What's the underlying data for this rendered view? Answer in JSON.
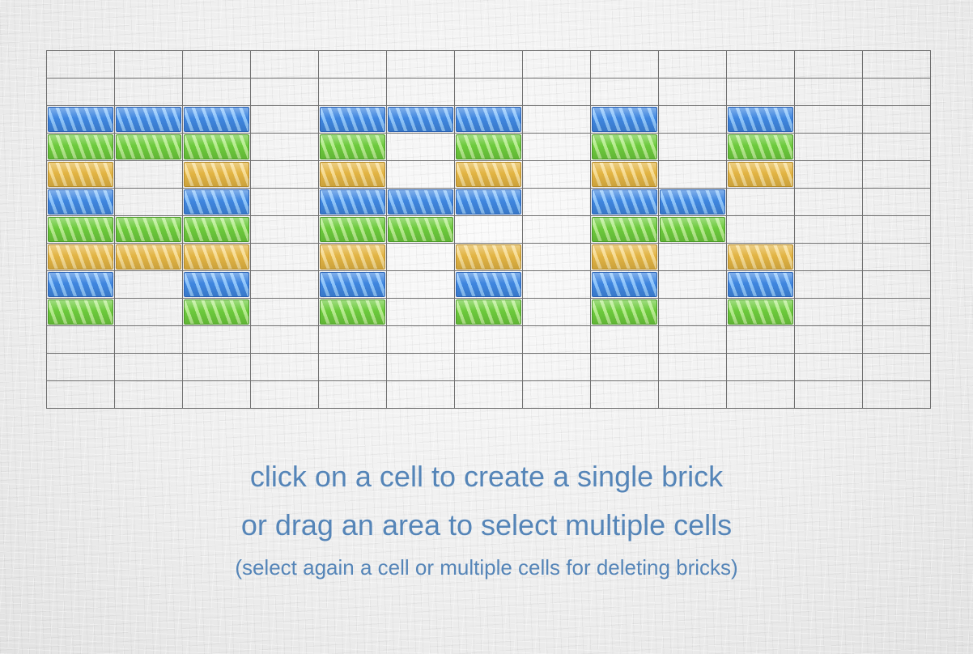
{
  "board": {
    "rows": 13,
    "cols": 13,
    "colors": {
      "blue": "#3f86df",
      "green": "#6cca3c",
      "yellow": "#e2b443"
    },
    "cells": [
      "",
      "",
      "BBB.BBB.B.B",
      "GGG.G.G.G.G",
      "Y.Y.Y.Y.Y.Y",
      "B.B.BBB.BB",
      "GGG.GG..GG",
      "YYY.Y.Y.Y.Y",
      "B.B.B.B.B.B",
      "G.G.G.G.G.G",
      "",
      "",
      ""
    ]
  },
  "instructions": {
    "line1": "click on a cell to create a single brick",
    "line2": "or drag an area to select multiple cells",
    "line3": "(select again a cell or multiple cells for deleting bricks)"
  }
}
